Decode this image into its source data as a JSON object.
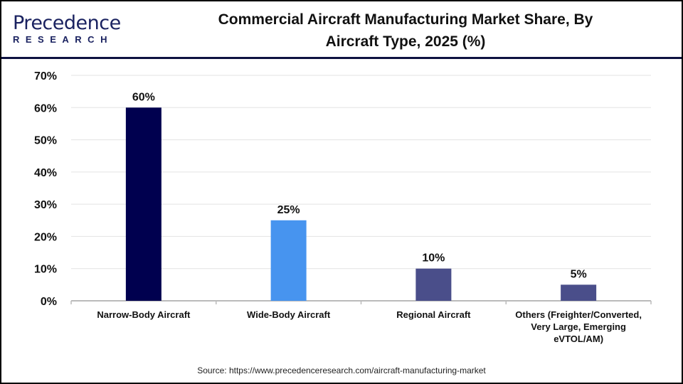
{
  "brand": {
    "logo_line1": "Precedence",
    "logo_line2": "RESEARCH"
  },
  "title_line1": "Commercial Aircraft Manufacturing  Market Share, By",
  "title_line2": "Aircraft Type, 2025 (%)",
  "source": "Source: https://www.precedenceresearch.com/aircraft-manufacturing-market",
  "chart_data": {
    "type": "bar",
    "title": "Commercial Aircraft Manufacturing  Market Share, By Aircraft Type, 2025 (%)",
    "categories": [
      [
        "Narrow-Body Aircraft"
      ],
      [
        "Wide-Body Aircraft"
      ],
      [
        "Regional Aircraft"
      ],
      [
        "Others (Freighter/Converted,",
        "Very Large, Emerging",
        "eVTOL/AM)"
      ]
    ],
    "values": [
      60,
      25,
      10,
      5
    ],
    "data_labels": [
      "60%",
      "25%",
      "10%",
      "5%"
    ],
    "colors": [
      "#00004f",
      "#4794ef",
      "#4a4e8a",
      "#4a4e8a"
    ],
    "ylim": [
      0,
      70
    ],
    "yticks": [
      "0%",
      "10%",
      "20%",
      "30%",
      "40%",
      "50%",
      "60%",
      "70%"
    ],
    "grid": true,
    "xlabel": "",
    "ylabel": ""
  }
}
